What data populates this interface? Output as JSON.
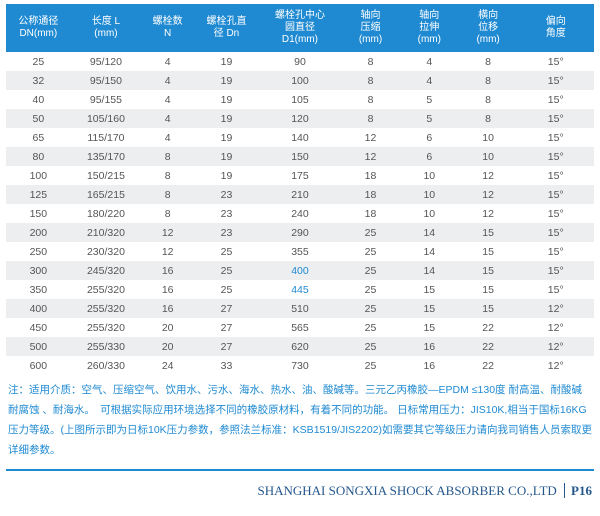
{
  "headers": [
    "公称通径\nDN(mm)",
    "长度 L\n(mm)",
    "螺栓数\nN",
    "螺栓孔直\n径 Dn",
    "螺栓孔中心\n圆直径\nD1(mm)",
    "轴向\n压缩\n(mm)",
    "轴向\n拉伸\n(mm)",
    "横向\n位移\n(mm)",
    "偏向\n角度"
  ],
  "rows": [
    [
      "25",
      "95/120",
      "4",
      "19",
      "90",
      "8",
      "4",
      "8",
      "15°"
    ],
    [
      "32",
      "95/150",
      "4",
      "19",
      "100",
      "8",
      "4",
      "8",
      "15°"
    ],
    [
      "40",
      "95/155",
      "4",
      "19",
      "105",
      "8",
      "5",
      "8",
      "15°"
    ],
    [
      "50",
      "105/160",
      "4",
      "19",
      "120",
      "8",
      "5",
      "8",
      "15°"
    ],
    [
      "65",
      "115/170",
      "4",
      "19",
      "140",
      "12",
      "6",
      "10",
      "15°"
    ],
    [
      "80",
      "135/170",
      "8",
      "19",
      "150",
      "12",
      "6",
      "10",
      "15°"
    ],
    [
      "100",
      "150/215",
      "8",
      "19",
      "175",
      "18",
      "10",
      "12",
      "15°"
    ],
    [
      "125",
      "165/215",
      "8",
      "23",
      "210",
      "18",
      "10",
      "12",
      "15°"
    ],
    [
      "150",
      "180/220",
      "8",
      "23",
      "240",
      "18",
      "10",
      "12",
      "15°"
    ],
    [
      "200",
      "210/320",
      "12",
      "23",
      "290",
      "25",
      "14",
      "15",
      "15°"
    ],
    [
      "250",
      "230/320",
      "12",
      "25",
      "355",
      "25",
      "14",
      "15",
      "15°"
    ],
    [
      "300",
      "245/320",
      "16",
      "25",
      "400",
      "25",
      "14",
      "15",
      "15°"
    ],
    [
      "350",
      "255/320",
      "16",
      "25",
      "445",
      "25",
      "15",
      "15",
      "15°"
    ],
    [
      "400",
      "255/320",
      "16",
      "27",
      "510",
      "25",
      "15",
      "15",
      "12°"
    ],
    [
      "450",
      "255/320",
      "20",
      "27",
      "565",
      "25",
      "15",
      "22",
      "12°"
    ],
    [
      "500",
      "255/330",
      "20",
      "27",
      "620",
      "25",
      "16",
      "22",
      "12°"
    ],
    [
      "600",
      "260/330",
      "24",
      "33",
      "730",
      "25",
      "16",
      "22",
      "12°"
    ]
  ],
  "special": [
    [
      11,
      4
    ],
    [
      12,
      4
    ]
  ],
  "note": "注：适用介质：空气、压缩空气、饮用水、污水、海水、热水、油、酸碱等。三元乙丙橡胶—EPDM ≤130度 耐高温、耐酸碱耐腐蚀 、耐海水。　可根据实际应用环境选择不同的橡胶原材料，有着不同的功能。\n日标常用压力：JIS10K,相当于国标16KG压力等级。(上图所示即为日标10K压力参数，参照法兰标准：KSB1519/JIS2202)如需要其它等级压力请向我司销售人员索取更详细参数。",
  "footer": {
    "company": "SHANGHAI SONGXIA SHOCK ABSORBER CO.,LTD",
    "page": "P16"
  },
  "colwidths": [
    "11%",
    "12%",
    "9%",
    "11%",
    "14%",
    "10%",
    "10%",
    "10%",
    "13%"
  ]
}
